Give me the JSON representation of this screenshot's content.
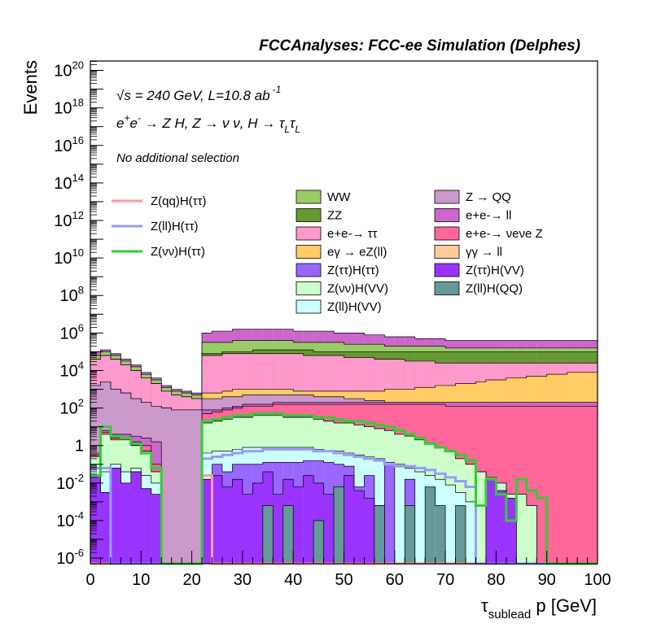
{
  "figure": {
    "title": "FCCAnalyses: FCC-ee Simulation (Delphes)",
    "xlabel": "τsublead p [GeV]",
    "xlabel_main": "τ",
    "xlabel_sub": "sublead",
    "xlabel_rest": " p [GeV]",
    "ylabel": "Events",
    "annotation_energy": "√s = 240 GeV, L=10.8 ab -1",
    "annotation_energy_root": "√",
    "annotation_energy_text": "s = 240 GeV, L=10.8 ab",
    "annotation_energy_sup": "-1",
    "annotation_process": "e+e- → Z H, Z → νν, H → τLτL",
    "annotation_process_parts": {
      "e1": "e",
      "plus": "+",
      "e2": "e",
      "minus": "-",
      "mid": " → Z H, Z → ν ν, H → τ",
      "L1": "L",
      "tau": "τ",
      "L2": "L"
    },
    "annotation_selection": "No additional selection"
  },
  "x_ticks": [
    "0",
    "10",
    "20",
    "30",
    "40",
    "50",
    "60",
    "70",
    "80",
    "90",
    "100"
  ],
  "y_ticks": [
    {
      "exp": -6,
      "base": "10",
      "sup": "-6"
    },
    {
      "exp": -4,
      "base": "10",
      "sup": "-4"
    },
    {
      "exp": -2,
      "base": "10",
      "sup": "-2"
    },
    {
      "exp": 0,
      "base": "1",
      "sup": ""
    },
    {
      "exp": 2,
      "base": "10",
      "sup": "2"
    },
    {
      "exp": 4,
      "base": "10",
      "sup": "4"
    },
    {
      "exp": 6,
      "base": "10",
      "sup": "6"
    },
    {
      "exp": 8,
      "base": "10",
      "sup": "8"
    },
    {
      "exp": 10,
      "base": "10",
      "sup": "10"
    },
    {
      "exp": 12,
      "base": "10",
      "sup": "12"
    },
    {
      "exp": 14,
      "base": "10",
      "sup": "14"
    },
    {
      "exp": 16,
      "base": "10",
      "sup": "16"
    },
    {
      "exp": 18,
      "base": "10",
      "sup": "18"
    },
    {
      "exp": 20,
      "base": "10",
      "sup": "20"
    }
  ],
  "legend_signal": [
    {
      "label": "Z(qq)H(ττ)",
      "color": "#ff9999"
    },
    {
      "label": "Z(ll)H(ττ)",
      "color": "#9999ff"
    },
    {
      "label": "Z(νν)H(ττ)",
      "color": "#33cc33"
    }
  ],
  "legend_bkg_col1": [
    {
      "label": "WW",
      "color": "#99cc66"
    },
    {
      "label": "ZZ",
      "color": "#669933"
    },
    {
      "label": "e+e-→ ττ",
      "color": "#ff99cc"
    },
    {
      "label": "eγ → eZ(ll)",
      "color": "#ffcc66"
    },
    {
      "label": "Z(ττ)H(ττ)",
      "color": "#9966ff"
    },
    {
      "label": "Z(νν)H(VV)",
      "color": "#ccffcc"
    },
    {
      "label": "Z(ll)H(VV)",
      "color": "#ccffff"
    }
  ],
  "legend_bkg_col2": [
    {
      "label": "Z → QQ",
      "color": "#cc99cc"
    },
    {
      "label": "e+e-→ ll",
      "color": "#cc66cc"
    },
    {
      "label": "e+e-→ νeνe Z",
      "color": "#ff6699"
    },
    {
      "label": "γγ → ll",
      "color": "#ffcc99"
    },
    {
      "label": "Z(ττ)H(VV)",
      "color": "#9933ff"
    },
    {
      "label": "Z(ll)H(QQ)",
      "color": "#669999"
    }
  ],
  "chart_data": {
    "type": "area",
    "stacked": true,
    "log_y": true,
    "xlim": [
      0,
      100
    ],
    "ylim_exp": [
      -6.3,
      20.5
    ],
    "bin_edges": [
      0,
      2,
      4,
      6,
      8,
      10,
      12,
      14,
      16,
      18,
      20,
      22,
      24,
      26,
      28,
      30,
      32,
      34,
      36,
      38,
      40,
      42,
      44,
      46,
      48,
      50,
      52,
      54,
      56,
      58,
      60,
      62,
      64,
      66,
      68,
      70,
      72,
      74,
      76,
      78,
      80,
      82,
      84,
      86,
      88,
      90,
      92,
      94,
      96,
      98,
      100
    ],
    "note": "Stacked backgrounds listed bottom to top; cumulative stack tops given as log10(events) per bin; signals are unstacked lines.",
    "stack_tops_log10": [
      {
        "name": "Z(ll)H(QQ)",
        "color": "#669999",
        "values": [
          -6.3,
          -6.3,
          -6.3,
          -6.3,
          -6.3,
          -6.3,
          -6.3,
          -6.3,
          -6.3,
          -6.3,
          -6.3,
          -6.3,
          -6.3,
          -6.3,
          -6.3,
          -6.3,
          -6.3,
          -3.2,
          -6.3,
          -3.2,
          -6.3,
          -6.3,
          -4.0,
          -6.3,
          -2.2,
          -6.3,
          -6.3,
          -6.3,
          -3.2,
          -6.3,
          -6.3,
          -3.2,
          -6.3,
          -2.2,
          -3.2,
          -6.3,
          -3.2,
          -6.3,
          -6.3,
          -6.3,
          -6.3,
          -6.3,
          -6.3,
          -6.3,
          -6.3,
          -6.3,
          -6.3,
          -6.3,
          -6.3,
          -6.3
        ]
      },
      {
        "name": "Z(ττ)H(VV)",
        "color": "#9933ff",
        "values": [
          -1.6,
          -2.5,
          -1.2,
          -2.0,
          -1.4,
          -2.3,
          -2.6,
          -6.3,
          -6.3,
          -6.3,
          -6.3,
          -1.8,
          -1.6,
          -2.2,
          -1.8,
          -2.6,
          -2.0,
          -1.4,
          -2.6,
          -1.8,
          -2.2,
          -1.6,
          -2.0,
          -2.6,
          -2.2,
          -1.6,
          -2.4,
          -2.8,
          -3.2,
          -6.3,
          -6.3,
          -6.3,
          -6.3,
          -6.3,
          -6.3,
          -6.3,
          -6.3,
          -6.3,
          -6.3,
          -1.8,
          -2.4,
          -2.8,
          -6.3,
          -6.3,
          -6.3,
          -6.3,
          -6.3,
          -6.3,
          -6.3,
          -6.3
        ]
      },
      {
        "name": "Z(ττ)H(ττ)",
        "color": "#9966ff",
        "values": [
          -1.6,
          -2.5,
          -1.2,
          -2.0,
          -1.4,
          -2.3,
          -2.6,
          -6.3,
          -6.3,
          -6.3,
          -6.3,
          -1.8,
          -1.0,
          -1.4,
          -1.0,
          -1.0,
          -1.0,
          -0.9,
          -0.9,
          -0.9,
          -0.9,
          -0.8,
          -0.8,
          -0.9,
          -1.0,
          -1.1,
          -2.2,
          -1.6,
          -3.2,
          -1.0,
          -6.3,
          -1.8,
          -6.3,
          -6.3,
          -6.3,
          -6.3,
          -6.3,
          -6.3,
          -6.3,
          -1.8,
          -2.4,
          -2.8,
          -6.3,
          -6.3,
          -6.3,
          -6.3,
          -6.3,
          -6.3,
          -6.3,
          -6.3
        ]
      },
      {
        "name": "Z(ll)H(VV)",
        "color": "#ccffff",
        "values": [
          -1.2,
          -1.4,
          -1.0,
          -1.4,
          -1.2,
          -1.6,
          -2.0,
          -6.3,
          -6.3,
          -6.3,
          -6.3,
          -0.4,
          -0.3,
          -0.3,
          -0.2,
          -0.1,
          -0.1,
          -0.1,
          -0.1,
          -0.1,
          -0.1,
          -0.1,
          -0.2,
          -0.3,
          -0.3,
          -0.4,
          -0.5,
          -0.6,
          -0.7,
          -0.9,
          -1.0,
          -1.2,
          -1.4,
          -1.6,
          -1.8,
          -2.1,
          -2.5,
          -3.0,
          -6.3,
          -6.3,
          -6.3,
          -6.3,
          -6.3,
          -6.3,
          -6.3,
          -6.3,
          -6.3,
          -6.3,
          -6.3,
          -6.3
        ]
      },
      {
        "name": "Z(νν)H(VV)",
        "color": "#ccffcc",
        "values": [
          -0.6,
          0.6,
          0.3,
          0.3,
          0.0,
          -0.3,
          -1.4,
          -6.3,
          -6.3,
          -6.3,
          -6.3,
          1.2,
          1.3,
          1.4,
          1.5,
          1.5,
          1.6,
          1.6,
          1.6,
          1.5,
          1.5,
          1.5,
          1.4,
          1.3,
          1.2,
          1.2,
          1.1,
          1.0,
          0.9,
          0.8,
          0.6,
          0.5,
          0.3,
          0.1,
          -0.1,
          -0.3,
          -0.7,
          -1.0,
          -1.4,
          -1.7,
          -2.0,
          -2.6,
          -2.6,
          -3.2,
          -6.3,
          -6.3,
          -6.3,
          -6.3,
          -6.3,
          -6.3
        ]
      },
      {
        "name": "γγ → ll",
        "color": "#ffcc99",
        "values": [
          -0.6,
          0.6,
          0.3,
          0.3,
          0.0,
          -0.3,
          -1.4,
          -6.3,
          -6.3,
          -6.3,
          -6.3,
          1.2,
          1.3,
          1.4,
          1.5,
          1.5,
          1.6,
          1.6,
          1.6,
          1.5,
          1.5,
          1.5,
          1.4,
          1.3,
          1.2,
          1.2,
          1.1,
          1.0,
          0.9,
          0.8,
          0.6,
          0.5,
          0.3,
          0.1,
          -0.1,
          -0.3,
          -0.7,
          -1.0,
          -1.4,
          -1.7,
          -2.0,
          -2.6,
          -2.6,
          -3.2,
          -6.3,
          -6.3,
          -6.3,
          -6.3,
          -6.3,
          -6.3
        ]
      },
      {
        "name": "e+e-→ νeνe Z",
        "color": "#ff6699",
        "values": [
          -0.5,
          0.7,
          0.4,
          0.4,
          0.2,
          0.0,
          -1.0,
          -6.3,
          -6.3,
          -6.3,
          -6.3,
          1.7,
          1.8,
          1.9,
          2.0,
          2.1,
          2.1,
          2.1,
          2.2,
          2.2,
          2.2,
          2.2,
          2.2,
          2.2,
          2.2,
          2.2,
          2.2,
          2.2,
          2.2,
          2.2,
          2.2,
          2.2,
          2.2,
          2.2,
          2.2,
          2.1,
          2.1,
          2.1,
          2.1,
          2.1,
          2.1,
          2.1,
          2.1,
          2.1,
          2.1,
          2.1,
          2.1,
          2.1,
          2.1,
          2.1
        ]
      },
      {
        "name": "e+e-→ ll",
        "color": "#cc66cc",
        "values": [
          -0.4,
          0.8,
          0.6,
          0.6,
          0.5,
          0.4,
          0.2,
          -6.3,
          -6.3,
          -6.3,
          -6.3,
          1.9,
          1.9,
          2.0,
          2.1,
          2.2,
          2.2,
          2.2,
          2.3,
          2.3,
          2.3,
          2.3,
          2.3,
          2.3,
          2.3,
          2.3,
          2.3,
          2.3,
          2.3,
          2.3,
          2.3,
          2.3,
          2.3,
          2.3,
          2.3,
          2.3,
          2.3,
          2.3,
          2.3,
          2.3,
          2.3,
          2.3,
          2.3,
          2.3,
          2.3,
          2.3,
          2.3,
          2.3,
          2.3,
          2.3
        ]
      },
      {
        "name": "Z → QQ",
        "color": "#cc99cc",
        "values": [
          3.2,
          3.4,
          3.0,
          2.8,
          2.5,
          2.3,
          2.1,
          2.0,
          1.9,
          1.9,
          1.9,
          2.5,
          2.5,
          2.6,
          2.6,
          2.7,
          2.7,
          2.7,
          2.7,
          2.7,
          2.7,
          2.7,
          2.6,
          2.6,
          2.6,
          2.5,
          2.5,
          2.4,
          2.4,
          2.3,
          2.3,
          2.3,
          2.3,
          2.3,
          2.3,
          2.3,
          2.3,
          2.3,
          2.3,
          2.3,
          2.3,
          2.3,
          2.3,
          2.3,
          2.3,
          2.3,
          2.3,
          2.3,
          2.3,
          2.3
        ]
      },
      {
        "name": "eγ → eZ(ll)",
        "color": "#ffcc66",
        "values": [
          3.2,
          3.4,
          3.0,
          2.8,
          2.5,
          2.3,
          2.1,
          2.0,
          1.9,
          1.9,
          1.9,
          2.8,
          2.8,
          2.9,
          3.0,
          3.0,
          3.0,
          3.0,
          3.0,
          3.0,
          2.9,
          2.9,
          2.9,
          2.9,
          2.9,
          2.9,
          2.9,
          2.9,
          2.9,
          3.0,
          3.0,
          3.0,
          3.1,
          3.1,
          3.2,
          3.2,
          3.3,
          3.3,
          3.4,
          3.5,
          3.5,
          3.6,
          3.6,
          3.7,
          3.7,
          3.8,
          3.8,
          3.9,
          3.9,
          3.9
        ]
      },
      {
        "name": "e+e-→ ττ",
        "color": "#ff99cc",
        "values": [
          4.6,
          4.8,
          4.6,
          4.3,
          4.0,
          3.6,
          3.3,
          2.9,
          2.7,
          2.6,
          2.5,
          4.8,
          4.8,
          4.9,
          4.9,
          4.9,
          4.9,
          4.9,
          4.9,
          4.9,
          4.9,
          4.8,
          4.8,
          4.8,
          4.8,
          4.7,
          4.7,
          4.7,
          4.6,
          4.6,
          4.6,
          4.5,
          4.5,
          4.5,
          4.4,
          4.4,
          4.4,
          4.4,
          4.4,
          4.4,
          4.4,
          4.4,
          4.4,
          4.4,
          4.4,
          4.4,
          4.4,
          4.4,
          4.4,
          4.4
        ]
      },
      {
        "name": "ZZ",
        "color": "#669933",
        "values": [
          4.6,
          4.8,
          4.6,
          4.3,
          4.0,
          3.6,
          3.3,
          2.9,
          2.7,
          2.6,
          2.5,
          4.9,
          4.9,
          5.0,
          5.0,
          5.0,
          5.1,
          5.1,
          5.1,
          5.1,
          5.1,
          5.1,
          5.0,
          5.0,
          5.0,
          5.0,
          5.0,
          5.0,
          5.0,
          5.0,
          5.0,
          5.0,
          5.0,
          5.0,
          5.0,
          5.0,
          5.0,
          5.0,
          5.0,
          5.0,
          5.0,
          5.0,
          5.0,
          5.0,
          5.0,
          5.0,
          5.0,
          5.0,
          5.0,
          5.0
        ]
      },
      {
        "name": "WW",
        "color": "#99cc66",
        "values": [
          4.8,
          5.0,
          4.8,
          4.5,
          4.2,
          3.8,
          3.5,
          3.1,
          2.9,
          2.8,
          2.7,
          5.5,
          5.5,
          5.5,
          5.6,
          5.6,
          5.6,
          5.6,
          5.6,
          5.6,
          5.5,
          5.5,
          5.5,
          5.5,
          5.5,
          5.4,
          5.4,
          5.4,
          5.4,
          5.3,
          5.3,
          5.3,
          5.3,
          5.3,
          5.3,
          5.2,
          5.2,
          5.2,
          5.2,
          5.2,
          5.2,
          5.2,
          5.2,
          5.2,
          5.2,
          5.2,
          5.2,
          5.2,
          5.2,
          5.2
        ]
      },
      {
        "name": "e+e-→ ll (upper)",
        "color": "#cc66cc",
        "values": [
          5.0,
          5.1,
          4.9,
          4.6,
          4.3,
          3.9,
          3.6,
          3.2,
          3.0,
          2.9,
          2.8,
          6.0,
          6.1,
          6.1,
          6.2,
          6.2,
          6.2,
          6.2,
          6.2,
          6.2,
          6.1,
          6.1,
          6.1,
          6.1,
          6.0,
          6.0,
          6.0,
          5.9,
          5.9,
          5.8,
          5.8,
          5.8,
          5.7,
          5.7,
          5.7,
          5.6,
          5.6,
          5.6,
          5.6,
          5.6,
          5.6,
          5.6,
          5.6,
          5.6,
          5.6,
          5.6,
          5.6,
          5.6,
          5.6,
          5.6
        ]
      }
    ],
    "signals": [
      {
        "name": "Z(qq)H(ττ)",
        "color": "#ff9999",
        "values": [
          -6.3,
          -6.3,
          -6.3,
          -6.3,
          -6.3,
          -6.3,
          -6.3,
          -6.3,
          -6.3,
          -6.3,
          -6.3,
          -1.6,
          -6.3,
          -6.3,
          -6.3,
          -6.3,
          -6.3,
          -6.3,
          -6.3,
          -6.3,
          -6.3,
          -6.3,
          -6.3,
          -6.3,
          -6.3,
          -6.3,
          -6.3,
          -6.3,
          -6.3,
          -6.3,
          -6.3,
          -6.3,
          -6.3,
          -6.3,
          -6.3,
          -6.3,
          -6.3,
          -6.3,
          -6.3,
          -6.3,
          -6.3,
          -6.3,
          -6.3,
          -6.3,
          -6.3,
          -6.3,
          -6.3,
          -6.3,
          -6.3,
          -6.3
        ]
      },
      {
        "name": "Z(ll)H(ττ)",
        "color": "#9999ff",
        "values": [
          -1.2,
          -1.2,
          -6.3,
          -6.3,
          -6.3,
          -6.3,
          -6.3,
          -6.3,
          -6.3,
          -6.3,
          -6.3,
          -0.7,
          -0.6,
          -0.5,
          -0.4,
          -0.3,
          -0.3,
          -0.2,
          -0.2,
          -0.2,
          -0.2,
          -0.2,
          -0.3,
          -0.3,
          -0.4,
          -0.5,
          -0.6,
          -0.7,
          -0.8,
          -1.0,
          -1.1,
          -1.1,
          -1.2,
          -1.3,
          -1.5,
          -1.7,
          -1.9,
          -2.2,
          -6.3,
          -6.3,
          -6.3,
          -6.3,
          -6.3,
          -6.3,
          -6.3,
          -6.3,
          -6.3,
          -6.3,
          -6.3,
          -6.3
        ]
      },
      {
        "name": "Z(νν)H(ττ)",
        "color": "#33cc33",
        "values": [
          -1.6,
          1.0,
          0.5,
          0.4,
          0.1,
          -0.4,
          -1.2,
          -6.3,
          -6.3,
          -6.3,
          -6.3,
          1.3,
          1.4,
          1.5,
          1.6,
          1.6,
          1.7,
          1.7,
          1.7,
          1.6,
          1.6,
          1.6,
          1.5,
          1.5,
          1.4,
          1.3,
          1.3,
          1.2,
          1.1,
          1.0,
          0.8,
          0.6,
          0.4,
          0.1,
          -0.1,
          -0.3,
          -0.5,
          -0.8,
          -3.2,
          -1.8,
          -2.6,
          -4.0,
          -1.8,
          -2.4,
          -2.8,
          -6.3,
          -6.3,
          -6.3,
          -6.3,
          -6.3
        ]
      }
    ]
  }
}
